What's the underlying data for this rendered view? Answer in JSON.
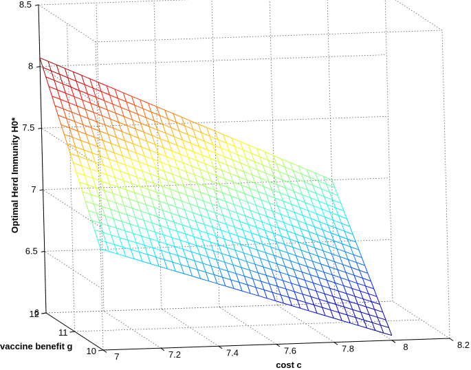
{
  "chart_data": {
    "type": "surface",
    "view": "3d-mesh",
    "colormap": "jet",
    "grid": true,
    "xlabel": "cost c",
    "ylabel": "vaccine benefit g",
    "zlabel": "Optimal Herd Immunity H0*",
    "x_range": [
      7,
      8.2
    ],
    "y_range": [
      10,
      12
    ],
    "z_range": [
      6,
      8.5
    ],
    "x_ticks": [
      "7",
      "7.2",
      "7.4",
      "7.6",
      "7.8",
      "8",
      "8.2"
    ],
    "y_ticks": [
      "10",
      "11",
      "12"
    ],
    "z_ticks": [
      "6",
      "6.5",
      "7",
      "7.5",
      "8",
      "8.5"
    ],
    "surface": {
      "x_min": 7,
      "x_max": 8,
      "y_min": 10,
      "y_max": 12,
      "corners": [
        {
          "x": 7,
          "y": 12,
          "z": 8.07
        },
        {
          "x": 7,
          "y": 10,
          "z": 6.82
        },
        {
          "x": 8,
          "y": 12,
          "z": 7.0
        },
        {
          "x": 8,
          "y": 10,
          "z": 6.04
        }
      ],
      "x_lines": 36,
      "y_lines": 21
    }
  }
}
